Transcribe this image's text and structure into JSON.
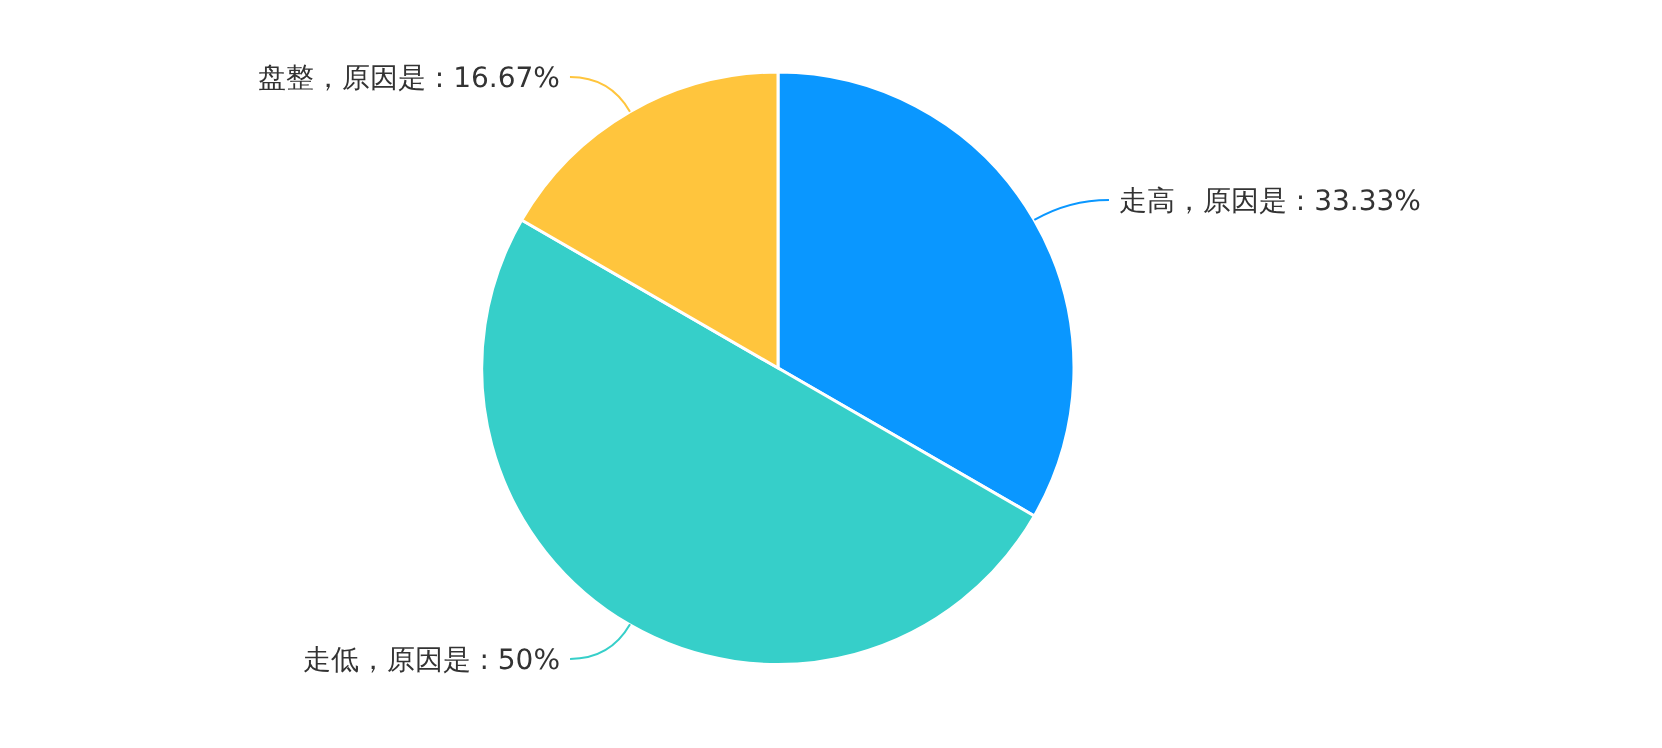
{
  "chart_data": {
    "type": "pie",
    "categories": [
      "走高，原因是",
      "走低，原因是",
      "盘整，原因是"
    ],
    "values": [
      33.33,
      50,
      16.67
    ],
    "value_labels": [
      "33.33%",
      "50%",
      "16.67%"
    ],
    "colors": [
      "#0a97ff",
      "#36cfc9",
      "#ffc53d"
    ]
  }
}
